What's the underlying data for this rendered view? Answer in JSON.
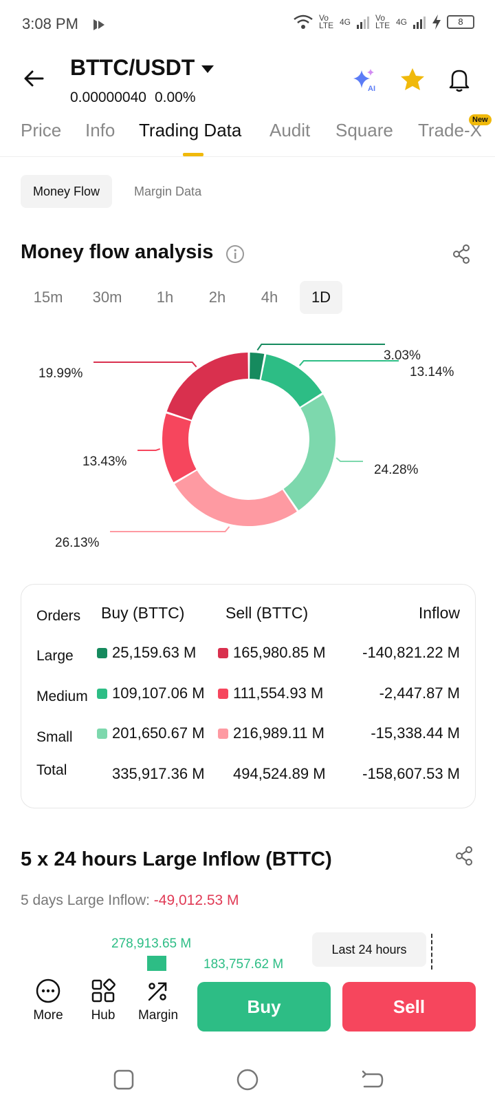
{
  "status": {
    "time": "3:08 PM",
    "battery": "8",
    "net1": "Vo LTE",
    "net2": "4G",
    "net3": "Vo LTE",
    "net4": "4G"
  },
  "header": {
    "pair": "BTTC/USDT",
    "price": "0.00000040",
    "change": "0.00%"
  },
  "tabs": [
    "Price",
    "Info",
    "Trading Data",
    "Audit",
    "Square",
    "Trade-X"
  ],
  "new_badge": "New",
  "subtabs": [
    "Money Flow",
    "Margin Data"
  ],
  "money_flow": {
    "title": "Money flow analysis",
    "intervals": [
      "15m",
      "30m",
      "1h",
      "2h",
      "4h",
      "1D"
    ],
    "active_interval": "1D"
  },
  "chart_data": {
    "type": "pie",
    "labels": [
      "3.03%",
      "13.14%",
      "24.28%",
      "26.13%",
      "13.43%",
      "19.99%"
    ],
    "values": [
      3.03,
      13.14,
      24.28,
      26.13,
      13.43,
      19.99
    ],
    "colors": [
      "#168a5e",
      "#2dbd85",
      "#7dd8ad",
      "#fe9aa2",
      "#f6465d",
      "#d9304e"
    ]
  },
  "orders_table": {
    "headers": {
      "orders": "Orders",
      "buy": "Buy (BTTC)",
      "sell": "Sell (BTTC)",
      "inflow": "Inflow"
    },
    "rows": [
      {
        "name": "Large",
        "buy": "25,159.63 M",
        "sell": "165,980.85 M",
        "inflow": "-140,821.22 M",
        "buy_color": "#168a5e",
        "sell_color": "#d9304e"
      },
      {
        "name": "Medium",
        "buy": "109,107.06 M",
        "sell": "111,554.93 M",
        "inflow": "-2,447.87 M",
        "buy_color": "#2dbd85",
        "sell_color": "#f6465d"
      },
      {
        "name": "Small",
        "buy": "201,650.67 M",
        "sell": "216,989.11 M",
        "inflow": "-15,338.44 M",
        "buy_color": "#7dd8ad",
        "sell_color": "#fe9aa2"
      },
      {
        "name": "Total",
        "buy": "335,917.36 M",
        "sell": "494,524.89 M",
        "inflow": "-158,607.53 M"
      }
    ]
  },
  "large_inflow": {
    "title": "5 x 24 hours Large Inflow (BTTC)",
    "five_days_label": "5 days Large Inflow:",
    "five_days_value": "-49,012.53 M",
    "bar1_label": "278,913.65 M",
    "bar2_label": "183,757.62 M",
    "last24": "Last 24 hours"
  },
  "bottom": {
    "more": "More",
    "hub": "Hub",
    "margin": "Margin",
    "buy": "Buy",
    "sell": "Sell"
  }
}
